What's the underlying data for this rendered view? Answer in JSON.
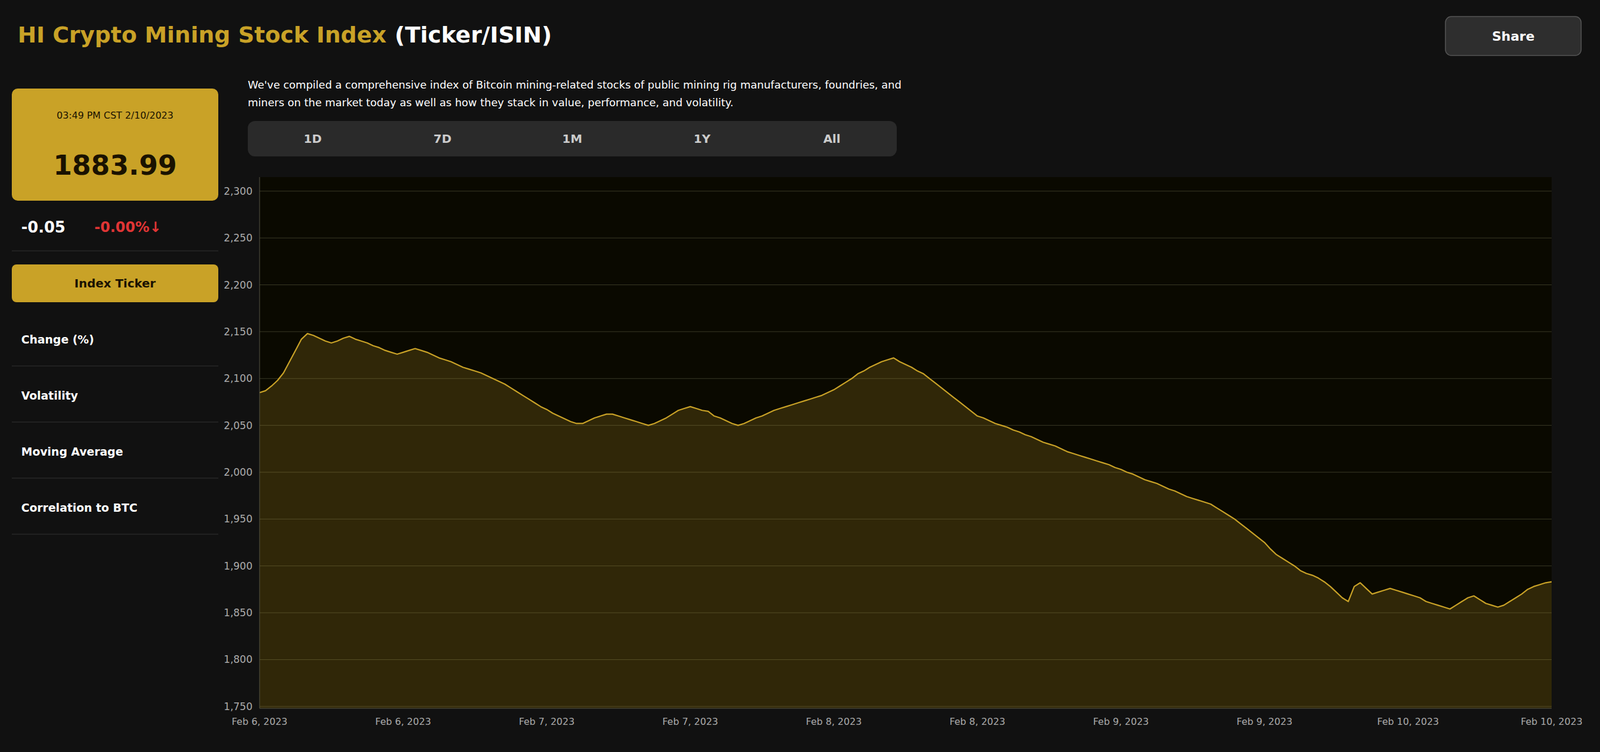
{
  "chart_data": {
    "type": "area",
    "title": "HI Crypto Mining Stock Index",
    "subtitle": "(Ticker/ISIN)",
    "annotations": [
      "Share",
      "03:49 PM CST 2/10/2023",
      "1883.99",
      "-0.05",
      "-0.00%↓",
      "We've compiled a comprehensive index of Bitcoin mining-related stocks of public mining rig manufacturers, foundries, and",
      "miners on the market today as well as how they stack in value, performance, and volatility.",
      "1D",
      "7D",
      "1M",
      "1Y",
      "All",
      "Index Ticker",
      "Change (%)",
      "Volatility",
      "Moving Average",
      "Correlation to BTC"
    ],
    "color": "#c9a227",
    "grid": true,
    "ylim": [
      1748,
      2315
    ],
    "yticks": [
      {
        "value": 1750,
        "label": "1,750"
      },
      {
        "value": 1800,
        "label": "1,800"
      },
      {
        "value": 1850,
        "label": "1,850"
      },
      {
        "value": 1900,
        "label": "1,900"
      },
      {
        "value": 1950,
        "label": "1,950"
      },
      {
        "value": 2000,
        "label": "2,000"
      },
      {
        "value": 2050,
        "label": "2,050"
      },
      {
        "value": 2100,
        "label": "2,100"
      },
      {
        "value": 2150,
        "label": "2,150"
      },
      {
        "value": 2200,
        "label": "2,200"
      },
      {
        "value": 2250,
        "label": "2,250"
      },
      {
        "value": 2300,
        "label": "2,300"
      }
    ],
    "categories": [
      "Feb 6, 2023",
      null,
      null,
      null,
      null,
      null,
      null,
      null,
      null,
      null,
      null,
      null,
      null,
      null,
      null,
      null,
      null,
      null,
      null,
      null,
      null,
      null,
      null,
      null,
      "Feb 6, 2023",
      null,
      null,
      null,
      null,
      null,
      null,
      null,
      null,
      null,
      null,
      null,
      null,
      null,
      null,
      null,
      null,
      null,
      null,
      null,
      null,
      null,
      null,
      null,
      "Feb 7, 2023",
      null,
      null,
      null,
      null,
      null,
      null,
      null,
      null,
      null,
      null,
      null,
      null,
      null,
      null,
      null,
      null,
      null,
      null,
      null,
      null,
      null,
      null,
      null,
      "Feb 7, 2023",
      null,
      null,
      null,
      null,
      null,
      null,
      null,
      null,
      null,
      null,
      null,
      null,
      null,
      null,
      null,
      null,
      null,
      null,
      null,
      null,
      null,
      null,
      null,
      "Feb 8, 2023",
      null,
      null,
      null,
      null,
      null,
      null,
      null,
      null,
      null,
      null,
      null,
      null,
      null,
      null,
      null,
      null,
      null,
      null,
      null,
      null,
      null,
      null,
      null,
      "Feb 8, 2023",
      null,
      null,
      null,
      null,
      null,
      null,
      null,
      null,
      null,
      null,
      null,
      null,
      null,
      null,
      null,
      null,
      null,
      null,
      null,
      null,
      null,
      null,
      null,
      "Feb 9, 2023",
      null,
      null,
      null,
      null,
      null,
      null,
      null,
      null,
      null,
      null,
      null,
      null,
      null,
      null,
      null,
      null,
      null,
      null,
      null,
      null,
      null,
      null,
      null,
      "Feb 9, 2023",
      null,
      null,
      null,
      null,
      null,
      null,
      null,
      null,
      null,
      null,
      null,
      null,
      null,
      null,
      null,
      null,
      null,
      null,
      null,
      null,
      null,
      null,
      null,
      "Feb 10, 2023",
      null,
      null,
      null,
      null,
      null,
      null,
      null,
      null,
      null,
      null,
      null,
      null,
      null,
      null,
      null,
      null,
      null,
      null,
      null,
      null,
      null,
      null,
      null,
      "Feb 10, 2023"
    ],
    "values": [
      2085,
      2087,
      2092,
      2098,
      2106,
      2118,
      2130,
      2142,
      2148,
      2146,
      2143,
      2140,
      2138,
      2140,
      2143,
      2145,
      2142,
      2140,
      2138,
      2135,
      2133,
      2130,
      2128,
      2126,
      2128,
      2130,
      2132,
      2130,
      2128,
      2125,
      2122,
      2120,
      2118,
      2115,
      2112,
      2110,
      2108,
      2106,
      2103,
      2100,
      2097,
      2094,
      2090,
      2086,
      2082,
      2078,
      2074,
      2070,
      2067,
      2063,
      2060,
      2057,
      2054,
      2052,
      2052,
      2055,
      2058,
      2060,
      2062,
      2062,
      2060,
      2058,
      2056,
      2054,
      2052,
      2050,
      2052,
      2055,
      2058,
      2062,
      2066,
      2068,
      2070,
      2068,
      2066,
      2065,
      2060,
      2058,
      2055,
      2052,
      2050,
      2052,
      2055,
      2058,
      2060,
      2063,
      2066,
      2068,
      2070,
      2072,
      2074,
      2076,
      2078,
      2080,
      2082,
      2085,
      2088,
      2092,
      2096,
      2100,
      2105,
      2108,
      2112,
      2115,
      2118,
      2120,
      2122,
      2118,
      2115,
      2112,
      2108,
      2105,
      2100,
      2095,
      2090,
      2085,
      2080,
      2075,
      2070,
      2065,
      2060,
      2058,
      2055,
      2052,
      2050,
      2048,
      2045,
      2043,
      2040,
      2038,
      2035,
      2032,
      2030,
      2028,
      2025,
      2022,
      2020,
      2018,
      2016,
      2014,
      2012,
      2010,
      2008,
      2005,
      2003,
      2000,
      1998,
      1995,
      1992,
      1990,
      1988,
      1985,
      1982,
      1980,
      1977,
      1974,
      1972,
      1970,
      1968,
      1966,
      1962,
      1958,
      1954,
      1950,
      1945,
      1940,
      1935,
      1930,
      1925,
      1918,
      1912,
      1908,
      1904,
      1900,
      1895,
      1892,
      1890,
      1887,
      1883,
      1878,
      1872,
      1866,
      1862,
      1878,
      1882,
      1876,
      1870,
      1872,
      1874,
      1876,
      1874,
      1872,
      1870,
      1868,
      1866,
      1862,
      1860,
      1858,
      1856,
      1854,
      1858,
      1862,
      1866,
      1868,
      1864,
      1860,
      1858,
      1856,
      1858,
      1862,
      1866,
      1870,
      1875,
      1878,
      1880,
      1882,
      1883
    ]
  }
}
